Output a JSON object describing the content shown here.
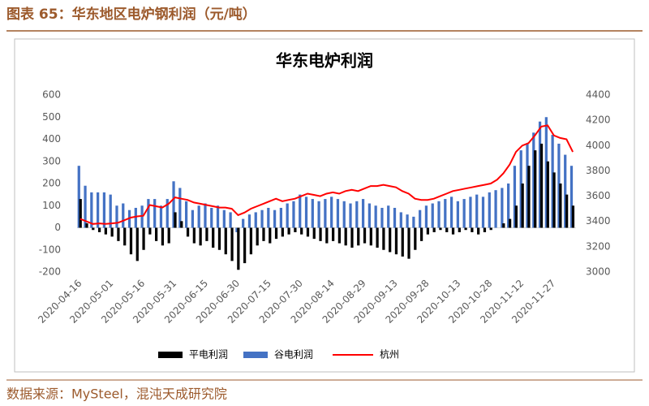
{
  "page": {
    "caption": "图表 65：华东地区电炉钢利润（元/吨）",
    "source": "数据来源：MySteel，混沌天成研究院"
  },
  "chart_data": {
    "type": "bar",
    "title": "华东电炉利润",
    "categories": [
      "2020-04-16",
      null,
      null,
      null,
      null,
      "2020-05-01",
      null,
      null,
      null,
      null,
      "2020-05-16",
      null,
      null,
      null,
      null,
      "2020-05-31",
      null,
      null,
      null,
      null,
      "2020-06-15",
      null,
      null,
      null,
      null,
      "2020-06-30",
      null,
      null,
      null,
      null,
      "2020-07-15",
      null,
      null,
      null,
      null,
      "2020-07-30",
      null,
      null,
      null,
      null,
      "2020-08-14",
      null,
      null,
      null,
      null,
      "2020-08-29",
      null,
      null,
      null,
      null,
      "2020-09-13",
      null,
      null,
      null,
      null,
      "2020-09-28",
      null,
      null,
      null,
      null,
      "2020-10-13",
      null,
      null,
      null,
      null,
      "2020-10-28",
      null,
      null,
      null,
      null,
      "2020-11-12",
      null,
      null,
      null,
      null,
      "2020-11-27",
      null,
      null,
      null
    ],
    "series": [
      {
        "name": "平电利润",
        "color": "#000000",
        "values": [
          130,
          20,
          -10,
          -20,
          -30,
          -40,
          -60,
          -80,
          -120,
          -150,
          -100,
          -30,
          -60,
          -80,
          -70,
          70,
          30,
          -40,
          -70,
          -80,
          -60,
          -90,
          -100,
          -120,
          -150,
          -190,
          -160,
          -120,
          -80,
          -60,
          -70,
          -50,
          -40,
          -30,
          -20,
          -30,
          -40,
          -50,
          -60,
          -70,
          -60,
          -70,
          -80,
          -90,
          -80,
          -70,
          -80,
          -90,
          -100,
          -110,
          -120,
          -130,
          -140,
          -100,
          -60,
          -30,
          -20,
          -10,
          -20,
          -30,
          -20,
          -10,
          -20,
          -30,
          -20,
          -10,
          0,
          20,
          40,
          100,
          200,
          280,
          350,
          380,
          300,
          250,
          200,
          150,
          100
        ]
      },
      {
        "name": "谷电利润",
        "color": "#4472c4",
        "values": [
          280,
          190,
          160,
          160,
          160,
          150,
          100,
          110,
          80,
          90,
          100,
          130,
          130,
          100,
          130,
          210,
          180,
          120,
          80,
          100,
          110,
          90,
          100,
          80,
          70,
          -20,
          40,
          60,
          70,
          80,
          90,
          80,
          90,
          110,
          120,
          150,
          140,
          130,
          120,
          130,
          140,
          130,
          120,
          110,
          120,
          130,
          110,
          100,
          90,
          100,
          90,
          70,
          60,
          50,
          80,
          100,
          110,
          120,
          130,
          140,
          120,
          130,
          140,
          150,
          140,
          160,
          170,
          180,
          200,
          280,
          350,
          380,
          430,
          480,
          500,
          420,
          380,
          330,
          280
        ]
      },
      {
        "name": "杭州",
        "color": "#ff0000",
        "axis": "y2",
        "type": "line",
        "values": [
          3420,
          3400,
          3380,
          3385,
          3380,
          3385,
          3390,
          3410,
          3430,
          3440,
          3445,
          3530,
          3520,
          3510,
          3540,
          3590,
          3580,
          3570,
          3550,
          3540,
          3530,
          3520,
          3510,
          3510,
          3500,
          3450,
          3470,
          3500,
          3520,
          3540,
          3560,
          3580,
          3560,
          3570,
          3580,
          3600,
          3620,
          3610,
          3600,
          3620,
          3630,
          3620,
          3640,
          3650,
          3640,
          3660,
          3680,
          3680,
          3690,
          3680,
          3670,
          3640,
          3620,
          3580,
          3570,
          3570,
          3580,
          3600,
          3620,
          3640,
          3650,
          3660,
          3670,
          3680,
          3690,
          3700,
          3730,
          3780,
          3850,
          3950,
          4000,
          4020,
          4080,
          4150,
          4160,
          4080,
          4060,
          4050,
          3950
        ]
      }
    ],
    "ylim": [
      -200,
      600
    ],
    "yticks": [
      -200,
      -100,
      0,
      100,
      200,
      300,
      400,
      500,
      600
    ],
    "y2lim": [
      3000,
      4400
    ],
    "y2ticks": [
      3000,
      3200,
      3400,
      3600,
      3800,
      4000,
      4200,
      4400
    ],
    "grid": false
  }
}
